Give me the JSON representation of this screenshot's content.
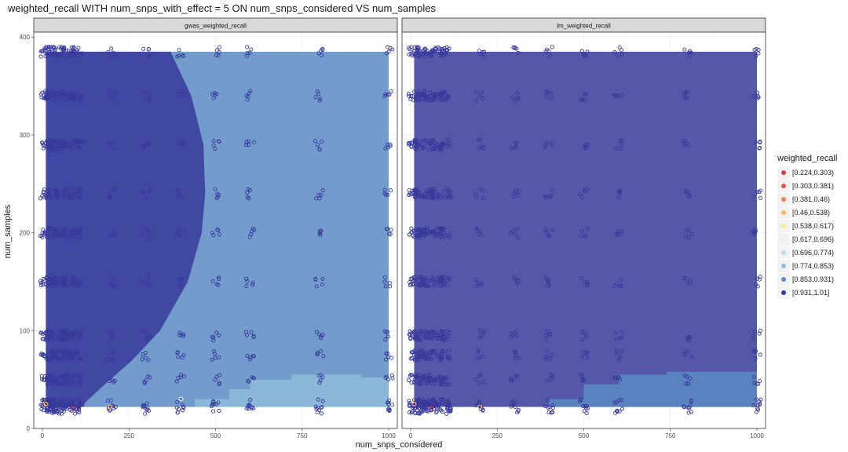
{
  "chart_data": {
    "type": "scatter",
    "title": "weighted_recall WITH num_snps_with_effect = 5 ON num_snps_considered VS num_samples",
    "xlabel": "num_snps_considered",
    "ylabel": "num_samples",
    "xlim": [
      -25,
      1025
    ],
    "ylim": [
      0,
      405
    ],
    "x_ticks": [
      0,
      250,
      500,
      750,
      1000
    ],
    "y_ticks": [
      0,
      100,
      200,
      300,
      400
    ],
    "grid": true,
    "legend_position": "right",
    "legend": {
      "title": "weighted_recall",
      "entries": [
        {
          "label": "[0.224,0.303)",
          "color": "#d53e4f"
        },
        {
          "label": "[0.303,0.381)",
          "color": "#e8554a"
        },
        {
          "label": "[0.381,0.46)",
          "color": "#f57e56"
        },
        {
          "label": "[0.46,0.538)",
          "color": "#fdb36b"
        },
        {
          "label": "[0.538,0.617)",
          "color": "#fee79a"
        },
        {
          "label": "[0.617,0.696)",
          "color": "#e6f3f6"
        },
        {
          "label": "[0.696,0.774)",
          "color": "#b9dbe9"
        },
        {
          "label": "[0.774,0.853)",
          "color": "#8fbcdb"
        },
        {
          "label": "[0.853,0.931)",
          "color": "#5b8bc3"
        },
        {
          "label": "[0.931,1.01]",
          "color": "#37399a"
        }
      ]
    },
    "sample_levels": [
      20,
      25,
      50,
      75,
      95,
      150,
      200,
      240,
      290,
      340,
      385
    ],
    "snp_levels": [
      10,
      25,
      50,
      75,
      100,
      200,
      300,
      400,
      500,
      600,
      800,
      1000
    ],
    "panels": [
      {
        "name": "gwas_weighted_recall",
        "region_extent": {
          "x": [
            10,
            1000
          ],
          "y": [
            22,
            385
          ]
        },
        "background_class": "[0.853,0.931)",
        "regions": [
          {
            "class": "[0.931,1.01]",
            "description": "left region bounded by curve",
            "boundary": [
              [
                370,
                385
              ],
              [
                430,
                340
              ],
              [
                465,
                290
              ],
              [
                470,
                240
              ],
              [
                460,
                200
              ],
              [
                420,
                150
              ],
              [
                340,
                100
              ],
              [
                260,
                70
              ],
              [
                180,
                45
              ],
              [
                110,
                22
              ]
            ]
          },
          {
            "class": "[0.774,0.853)",
            "description": "bottom-right band",
            "boundary": [
              [
                380,
                22
              ],
              [
                440,
                30
              ],
              [
                540,
                40
              ],
              [
                600,
                50
              ],
              [
                720,
                55
              ],
              [
                860,
                55
              ],
              [
                920,
                52
              ],
              [
                1000,
                48
              ]
            ]
          }
        ],
        "notable_points": [
          {
            "x": 10,
            "y": 25,
            "class": "[0.46,0.538)"
          },
          {
            "x": 90,
            "y": 20,
            "class": "[0.224,0.303)"
          },
          {
            "x": 195,
            "y": 22,
            "class": "[0.46,0.538)"
          },
          {
            "x": 400,
            "y": 30,
            "class": "[0.617,0.696)"
          }
        ]
      },
      {
        "name": "lm_weighted_recall",
        "region_extent": {
          "x": [
            10,
            1000
          ],
          "y": [
            22,
            385
          ]
        },
        "background_class": "[0.931,1.01]",
        "regions": [
          {
            "class": "[0.853,0.931)",
            "description": "bottom-right band",
            "boundary": [
              [
                330,
                22
              ],
              [
                400,
                30
              ],
              [
                500,
                45
              ],
              [
                600,
                55
              ],
              [
                740,
                58
              ],
              [
                1000,
                58
              ]
            ]
          }
        ],
        "notable_points": [
          {
            "x": 10,
            "y": 25,
            "class": "[0.46,0.538)"
          },
          {
            "x": 60,
            "y": 20,
            "class": "[0.224,0.303)"
          },
          {
            "x": 200,
            "y": 22,
            "class": "[0.46,0.538)"
          }
        ]
      }
    ]
  }
}
